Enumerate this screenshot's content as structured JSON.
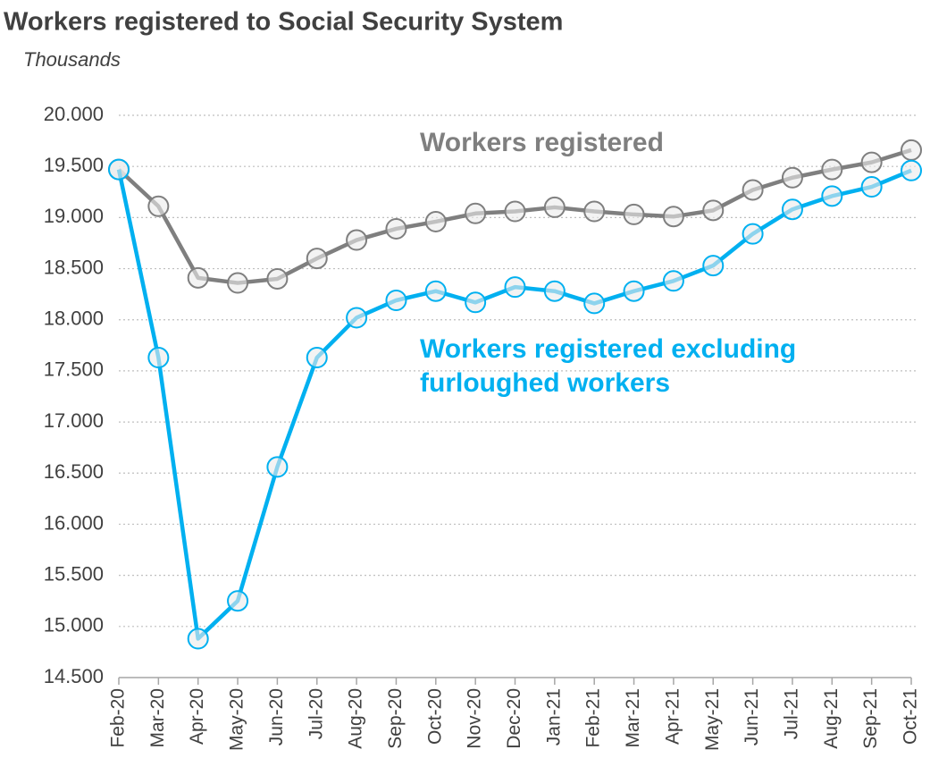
{
  "chart_data": {
    "type": "line",
    "title": "Workers registered to Social Security System",
    "subtitle": "Thousands",
    "categories": [
      "Feb-20",
      "Mar-20",
      "Apr-20",
      "May-20",
      "Jun-20",
      "Jul-20",
      "Aug-20",
      "Sep-20",
      "Oct-20",
      "Nov-20",
      "Dec-20",
      "Jan-21",
      "Feb-21",
      "Mar-21",
      "Apr-21",
      "May-21",
      "Jun-21",
      "Jul-21",
      "Aug-21",
      "Sep-21",
      "Oct-21"
    ],
    "series": [
      {
        "name": "Workers registered",
        "color": "#7f7f7f",
        "values": [
          19470,
          19110,
          18410,
          18360,
          18400,
          18600,
          18780,
          18890,
          18960,
          19040,
          19060,
          19100,
          19060,
          19030,
          19010,
          19070,
          19270,
          19390,
          19470,
          19540,
          19660
        ]
      },
      {
        "name": "Workers registered excluding furloughed workers",
        "color": "#00b0f0",
        "values": [
          19470,
          17630,
          14880,
          15250,
          16560,
          17630,
          18020,
          18190,
          18280,
          18170,
          18320,
          18280,
          18160,
          18280,
          18380,
          18530,
          18840,
          19080,
          19210,
          19300,
          19460
        ]
      }
    ],
    "ylim": [
      14500,
      20000
    ],
    "yticks": [
      {
        "value": 14500,
        "label": "14.500"
      },
      {
        "value": 15000,
        "label": "15.000"
      },
      {
        "value": 15500,
        "label": "15.500"
      },
      {
        "value": 16000,
        "label": "16.000"
      },
      {
        "value": 16500,
        "label": "16.500"
      },
      {
        "value": 17000,
        "label": "17.000"
      },
      {
        "value": 17500,
        "label": "17.500"
      },
      {
        "value": 18000,
        "label": "18.000"
      },
      {
        "value": 18500,
        "label": "18.500"
      },
      {
        "value": 19000,
        "label": "19.000"
      },
      {
        "value": 19500,
        "label": "19.500"
      },
      {
        "value": 20000,
        "label": "20.000"
      }
    ],
    "grid": true
  }
}
